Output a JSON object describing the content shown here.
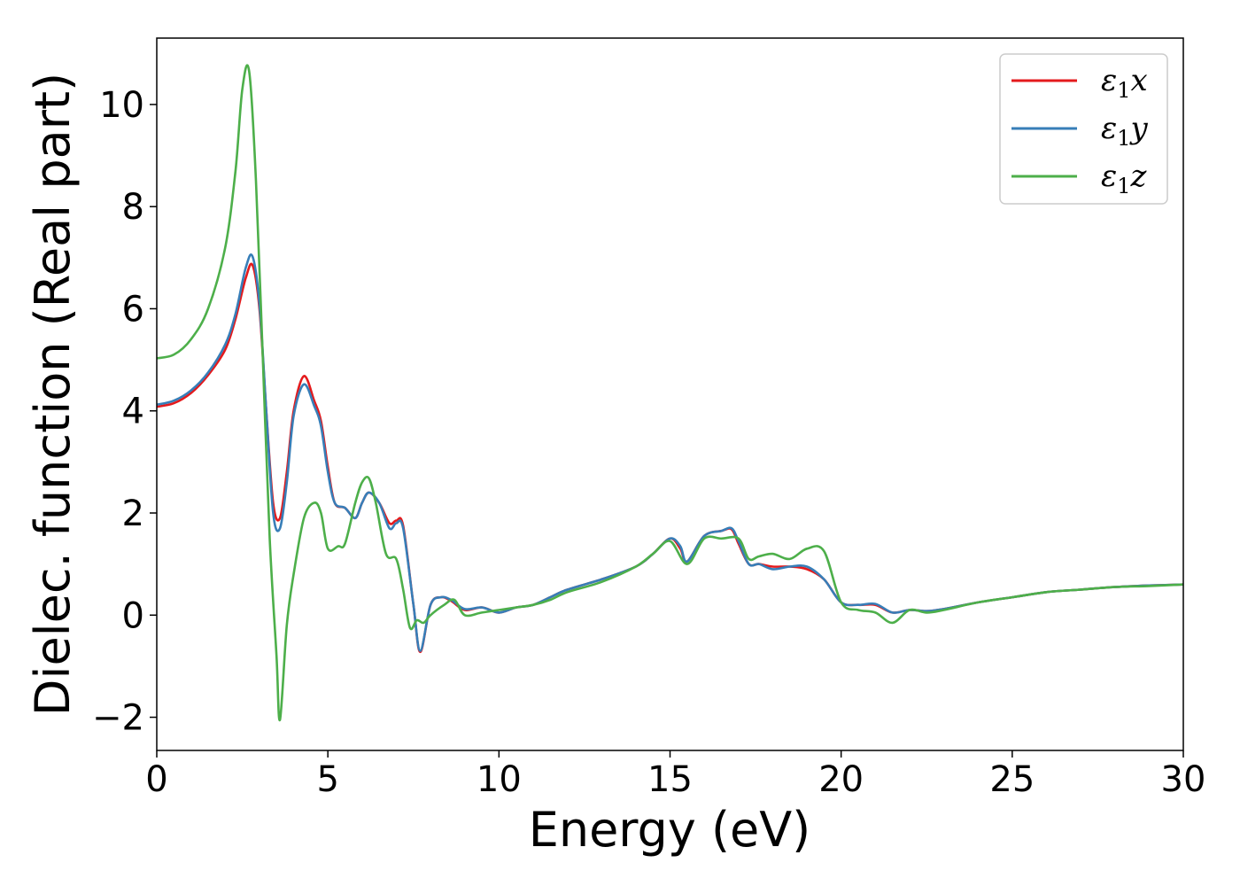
{
  "chart_data": {
    "type": "line",
    "xlabel": "Energy (eV)",
    "ylabel": "Dielec. function (Real part)",
    "xlim": [
      0,
      30
    ],
    "ylim": [
      -2.65,
      11.3
    ],
    "xticks": [
      0,
      5,
      10,
      15,
      20,
      25,
      30
    ],
    "xtick_labels": [
      "0",
      "5",
      "10",
      "15",
      "20",
      "25",
      "30"
    ],
    "yticks": [
      -2,
      0,
      2,
      4,
      6,
      8,
      10
    ],
    "ytick_labels": [
      "−2",
      "0",
      "2",
      "4",
      "6",
      "8",
      "10"
    ],
    "grid": false,
    "legend_position": "top-right",
    "series": [
      {
        "name": "ε1x",
        "legend_main": "ε",
        "legend_sub": "1",
        "legend_var": "x",
        "color": "#e41a1c",
        "x": [
          0,
          0.5,
          1,
          1.5,
          2,
          2.3,
          2.6,
          2.8,
          3.0,
          3.2,
          3.4,
          3.6,
          3.8,
          4.0,
          4.3,
          4.6,
          4.8,
          5.0,
          5.2,
          5.5,
          5.8,
          6.0,
          6.2,
          6.5,
          6.8,
          7.0,
          7.2,
          7.5,
          7.7,
          8.0,
          8.3,
          8.6,
          9.0,
          9.5,
          10,
          10.5,
          11,
          11.5,
          12,
          13,
          14,
          14.5,
          15,
          15.3,
          15.5,
          16,
          16.5,
          16.8,
          17,
          17.3,
          17.6,
          18,
          18.5,
          19,
          19.5,
          20,
          20.5,
          21,
          21.5,
          22,
          22.5,
          23,
          24,
          25,
          26,
          27,
          28,
          29,
          30
        ],
        "y": [
          4.08,
          4.15,
          4.35,
          4.7,
          5.2,
          5.8,
          6.6,
          6.85,
          6.0,
          4.0,
          2.2,
          1.9,
          2.8,
          4.0,
          4.68,
          4.2,
          3.8,
          2.9,
          2.2,
          2.1,
          1.9,
          2.2,
          2.4,
          2.2,
          1.8,
          1.85,
          1.75,
          0.2,
          -0.72,
          0.2,
          0.35,
          0.28,
          0.1,
          0.15,
          0.05,
          0.15,
          0.2,
          0.35,
          0.5,
          0.7,
          0.95,
          1.2,
          1.5,
          1.3,
          1.05,
          1.55,
          1.65,
          1.68,
          1.4,
          1.0,
          1.0,
          0.95,
          0.95,
          0.9,
          0.7,
          0.25,
          0.2,
          0.2,
          0.05,
          0.1,
          0.08,
          0.12,
          0.25,
          0.35,
          0.45,
          0.5,
          0.55,
          0.58,
          0.6
        ]
      },
      {
        "name": "ε1y",
        "legend_main": "ε",
        "legend_sub": "1",
        "legend_var": "y",
        "color": "#377eb8",
        "x": [
          0,
          0.5,
          1,
          1.5,
          2,
          2.3,
          2.6,
          2.8,
          3.0,
          3.2,
          3.4,
          3.6,
          3.8,
          4.0,
          4.3,
          4.6,
          4.8,
          5.0,
          5.2,
          5.5,
          5.8,
          6.0,
          6.2,
          6.5,
          6.8,
          7.0,
          7.2,
          7.5,
          7.7,
          8.0,
          8.3,
          8.6,
          9.0,
          9.5,
          10,
          10.5,
          11,
          11.5,
          12,
          13,
          14,
          14.5,
          15,
          15.3,
          15.5,
          16,
          16.5,
          16.8,
          17,
          17.3,
          17.6,
          18,
          18.5,
          19,
          19.5,
          20,
          20.5,
          21,
          21.5,
          22,
          22.5,
          23,
          24,
          25,
          26,
          27,
          28,
          29,
          30
        ],
        "y": [
          4.12,
          4.2,
          4.4,
          4.75,
          5.3,
          5.9,
          6.8,
          7.02,
          6.1,
          4.0,
          2.0,
          1.7,
          2.6,
          3.9,
          4.52,
          4.1,
          3.7,
          2.8,
          2.2,
          2.1,
          1.9,
          2.2,
          2.4,
          2.2,
          1.7,
          1.8,
          1.7,
          0.2,
          -0.7,
          0.2,
          0.35,
          0.3,
          0.12,
          0.15,
          0.05,
          0.15,
          0.2,
          0.35,
          0.5,
          0.7,
          0.95,
          1.2,
          1.5,
          1.35,
          1.05,
          1.55,
          1.65,
          1.7,
          1.45,
          1.0,
          1.0,
          0.9,
          0.95,
          0.95,
          0.7,
          0.25,
          0.2,
          0.22,
          0.05,
          0.1,
          0.08,
          0.12,
          0.25,
          0.35,
          0.45,
          0.5,
          0.55,
          0.58,
          0.6
        ]
      },
      {
        "name": "ε1z",
        "legend_main": "ε",
        "legend_sub": "1",
        "legend_var": "z",
        "color": "#4daf4a",
        "x": [
          0,
          0.5,
          1,
          1.5,
          2,
          2.3,
          2.5,
          2.7,
          2.9,
          3.1,
          3.3,
          3.5,
          3.6,
          3.8,
          4.0,
          4.3,
          4.6,
          4.8,
          5.0,
          5.3,
          5.5,
          5.8,
          6.0,
          6.2,
          6.4,
          6.7,
          7.0,
          7.2,
          7.4,
          7.6,
          7.8,
          8.0,
          8.4,
          8.7,
          9.0,
          9.5,
          10,
          10.5,
          11,
          11.5,
          12,
          13,
          14,
          14.5,
          15,
          15.5,
          16,
          16.5,
          17,
          17.3,
          17.6,
          18,
          18.5,
          19,
          19.5,
          20,
          20.5,
          21,
          21.5,
          22,
          22.5,
          23,
          24,
          25,
          26,
          27,
          28,
          29,
          30
        ],
        "y": [
          5.03,
          5.1,
          5.4,
          6.0,
          7.2,
          8.7,
          10.3,
          10.65,
          8.5,
          5.0,
          1.5,
          -0.8,
          -2.05,
          -0.2,
          0.8,
          1.9,
          2.2,
          2.0,
          1.3,
          1.35,
          1.4,
          2.2,
          2.6,
          2.68,
          2.2,
          1.2,
          1.1,
          0.5,
          -0.25,
          -0.1,
          -0.15,
          0.0,
          0.2,
          0.3,
          0.0,
          0.05,
          0.1,
          0.15,
          0.2,
          0.3,
          0.45,
          0.65,
          0.95,
          1.2,
          1.45,
          1.0,
          1.5,
          1.5,
          1.5,
          1.1,
          1.15,
          1.2,
          1.1,
          1.3,
          1.25,
          0.25,
          0.1,
          0.05,
          -0.15,
          0.1,
          0.05,
          0.1,
          0.25,
          0.35,
          0.45,
          0.5,
          0.55,
          0.57,
          0.6
        ]
      }
    ]
  }
}
